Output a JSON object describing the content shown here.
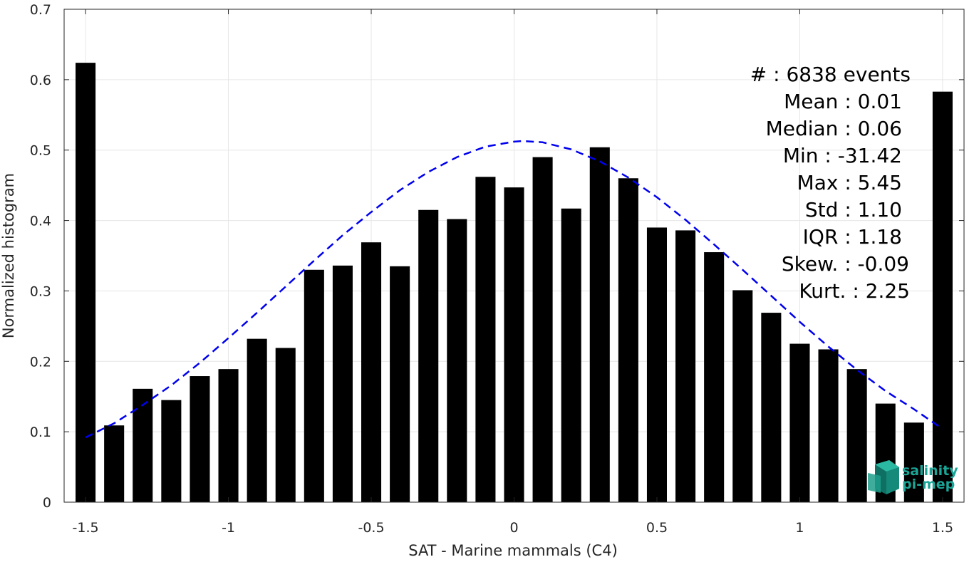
{
  "chart_data": {
    "type": "bar",
    "xlabel": "SAT - Marine mammals (C4)",
    "ylabel": "Normalized histogram",
    "xlim": [
      -1.575,
      1.575
    ],
    "ylim": [
      0,
      0.7
    ],
    "grid": true,
    "bin_width": 0.1,
    "x_ticks": [
      -1.5,
      -1,
      -0.5,
      0,
      0.5,
      1,
      1.5
    ],
    "x_tick_labels": [
      "-1.5",
      "-1",
      "-0.5",
      "0",
      "0.5",
      "1",
      "1.5"
    ],
    "y_ticks": [
      0,
      0.1,
      0.2,
      0.3,
      0.4,
      0.5,
      0.6,
      0.7
    ],
    "y_tick_labels": [
      "0",
      "0.1",
      "0.2",
      "0.3",
      "0.4",
      "0.5",
      "0.6",
      "0.7"
    ],
    "bars": {
      "x": [
        -1.5,
        -1.4,
        -1.3,
        -1.2,
        -1.1,
        -1.0,
        -0.9,
        -0.8,
        -0.7,
        -0.6,
        -0.5,
        -0.4,
        -0.3,
        -0.2,
        -0.1,
        0.0,
        0.1,
        0.2,
        0.3,
        0.4,
        0.5,
        0.6,
        0.7,
        0.8,
        0.9,
        1.0,
        1.1,
        1.2,
        1.3,
        1.4,
        1.5
      ],
      "values": [
        0.624,
        0.109,
        0.161,
        0.145,
        0.179,
        0.189,
        0.232,
        0.219,
        0.33,
        0.336,
        0.369,
        0.335,
        0.415,
        0.402,
        0.462,
        0.447,
        0.49,
        0.417,
        0.504,
        0.46,
        0.39,
        0.386,
        0.355,
        0.301,
        0.269,
        0.225,
        0.217,
        0.189,
        0.14,
        0.113,
        0.583
      ],
      "color": "#000000"
    },
    "fit_curve": {
      "style": "dashed",
      "color": "#0000ee",
      "x": [
        -1.5,
        -1.4,
        -1.3,
        -1.2,
        -1.1,
        -1.0,
        -0.9,
        -0.8,
        -0.7,
        -0.6,
        -0.5,
        -0.4,
        -0.3,
        -0.2,
        -0.1,
        0.0,
        0.03,
        0.1,
        0.2,
        0.3,
        0.4,
        0.5,
        0.6,
        0.7,
        0.8,
        0.9,
        1.0,
        1.1,
        1.2,
        1.3,
        1.4,
        1.5
      ],
      "y": [
        0.092,
        0.112,
        0.138,
        0.166,
        0.198,
        0.233,
        0.269,
        0.306,
        0.343,
        0.379,
        0.412,
        0.443,
        0.469,
        0.49,
        0.505,
        0.512,
        0.513,
        0.511,
        0.501,
        0.484,
        0.461,
        0.433,
        0.401,
        0.366,
        0.33,
        0.293,
        0.256,
        0.221,
        0.188,
        0.158,
        0.132,
        0.104
      ]
    },
    "stats": [
      "#  : 6838 events",
      "Mean : 0.01",
      "Median : 0.06",
      "Min : -31.42",
      "Max : 5.45",
      "Std : 1.10",
      "IQR : 1.18",
      "Skew. : -0.09",
      "Kurt. : 2.25"
    ]
  },
  "logo": {
    "line1": "salinity",
    "line2": "pi-mep"
  }
}
